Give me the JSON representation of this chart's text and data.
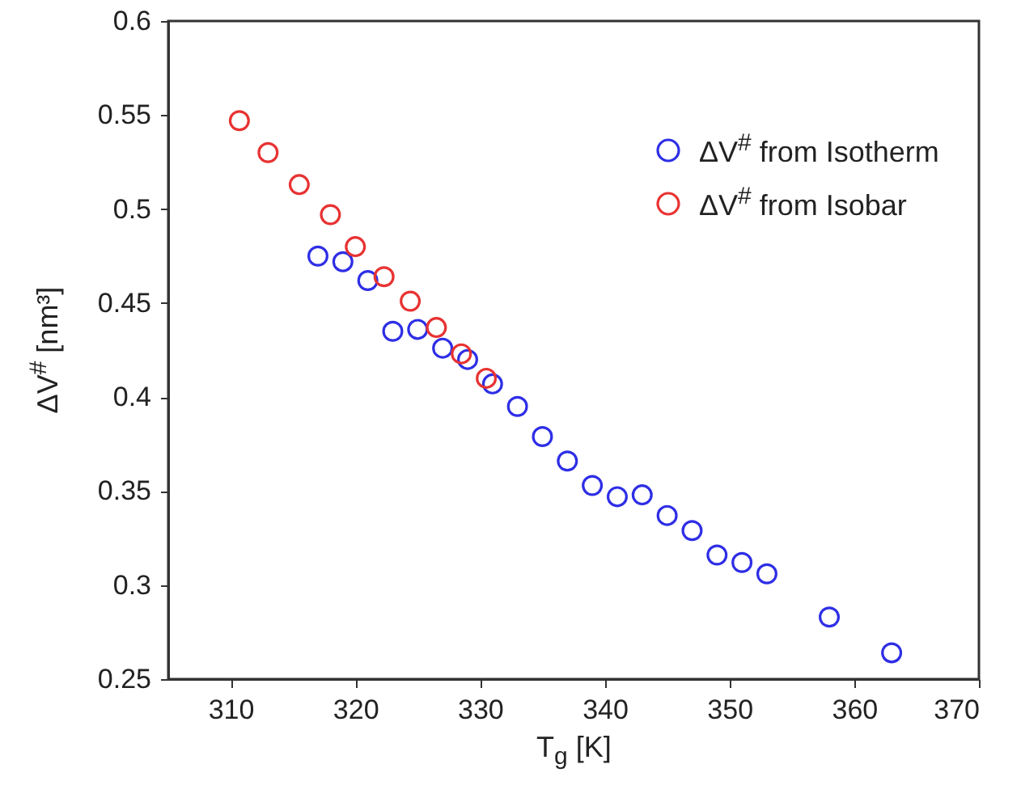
{
  "chart_data": {
    "type": "scatter",
    "xlabel": "T$_{g}$ [K]",
    "ylabel": "ΔV$^{#}$ [nm³]",
    "marker": "circle",
    "legend": "top right",
    "grid": false,
    "xlim": [
      305,
      370
    ],
    "xticks": [
      310,
      320,
      330,
      340,
      350,
      360,
      370
    ],
    "ylim": [
      0.25,
      0.6
    ],
    "yticks": [
      0.25,
      0.3,
      0.35,
      0.4,
      0.45,
      0.5,
      0.55,
      0.6
    ],
    "series": [
      {
        "name": "ΔV$^{#}$ from Isotherm",
        "color": "#2e2ee6",
        "x": [
          317,
          319,
          321,
          323,
          325,
          327,
          329,
          331,
          333,
          335,
          337,
          339,
          341,
          343,
          345,
          347,
          349,
          351,
          353,
          358,
          363
        ],
        "values": [
          0.475,
          0.472,
          0.462,
          0.435,
          0.436,
          0.426,
          0.42,
          0.407,
          0.395,
          0.379,
          0.366,
          0.353,
          0.347,
          0.348,
          0.337,
          0.329,
          0.316,
          0.312,
          0.306,
          0.283,
          0.264
        ]
      },
      {
        "name": "ΔV$^{#}$ from Isobar",
        "color": "#e83232",
        "x": [
          310.7,
          313,
          315.5,
          318,
          320,
          322.3,
          324.4,
          326.5,
          328.5,
          330.5
        ],
        "values": [
          0.547,
          0.53,
          0.513,
          0.497,
          0.48,
          0.464,
          0.451,
          0.437,
          0.423,
          0.41
        ]
      }
    ]
  }
}
